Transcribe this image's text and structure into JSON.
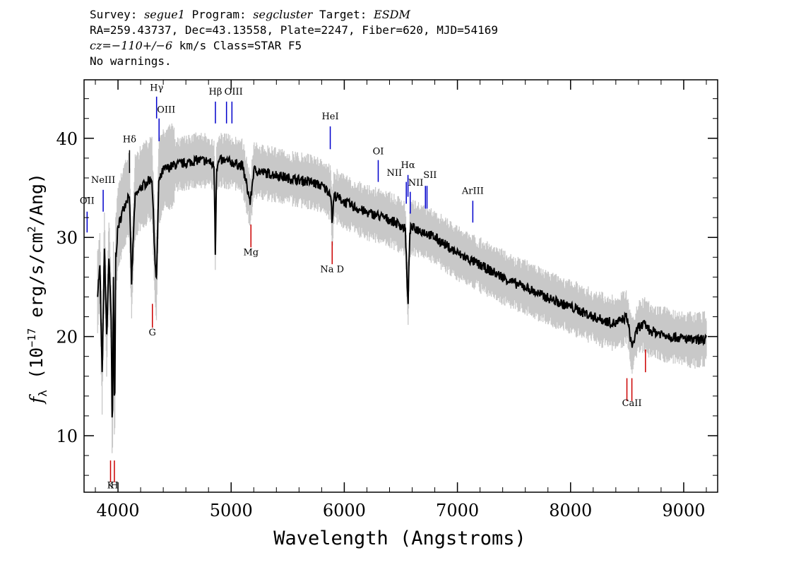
{
  "header": {
    "line1": {
      "survey_label": "Survey: ",
      "survey": "segue1",
      "program_label": " Program: ",
      "program": "segcluster",
      "target_label": " Target: ",
      "target": "ESDM"
    },
    "line2": "RA=259.43737, Dec=43.13558, Plate=2247, Fiber=620, MJD=54169",
    "line3": {
      "cz": "cz=−110+/−6",
      "rest": " km/s Class=STAR F5"
    },
    "line4": "No warnings."
  },
  "chart_data": {
    "type": "line",
    "xlabel": "Wavelength (Angstroms)",
    "ylabel_parts": {
      "f": "f",
      "sub": "λ",
      "open": " (10",
      "exp": "−17",
      "unit": " erg/s/cm",
      "sq": "2",
      "close": "/Ang)"
    },
    "xlim": [
      3700,
      9300
    ],
    "ylim": [
      4.3,
      45.9
    ],
    "xticks": [
      4000,
      5000,
      6000,
      7000,
      8000,
      9000
    ],
    "yticks": [
      10,
      20,
      30,
      40
    ],
    "series": [
      {
        "role": "flux",
        "color": "#000000",
        "x": [
          3820,
          3840,
          3860,
          3880,
          3900,
          3920,
          3940,
          3950,
          3960,
          3970,
          3980,
          4000,
          4050,
          4100,
          4120,
          4150,
          4200,
          4250,
          4300,
          4330,
          4340,
          4360,
          4400,
          4500,
          4600,
          4700,
          4800,
          4850,
          4861,
          4870,
          4900,
          5000,
          5100,
          5170,
          5200,
          5300,
          5400,
          5500,
          5600,
          5700,
          5800,
          5880,
          5893,
          5910,
          6000,
          6100,
          6200,
          6300,
          6400,
          6500,
          6540,
          6563,
          6580,
          6600,
          6700,
          6800,
          6900,
          7000,
          7100,
          7200,
          7300,
          7400,
          7500,
          7600,
          7700,
          7800,
          7900,
          8000,
          8100,
          8200,
          8300,
          8400,
          8498,
          8542,
          8600,
          8662,
          8700,
          8800,
          8900,
          9000,
          9100,
          9200
        ],
        "y": [
          24.5,
          27.0,
          16.0,
          29.0,
          20.0,
          28.0,
          22.0,
          8.8,
          26.0,
          10.8,
          28.0,
          31.0,
          33.0,
          34.5,
          25.5,
          34.0,
          35.0,
          35.5,
          36.0,
          27.0,
          25.5,
          35.5,
          36.8,
          37.3,
          37.5,
          37.8,
          37.7,
          37.2,
          27.8,
          37.0,
          37.8,
          37.6,
          37.2,
          33.5,
          36.8,
          36.5,
          36.3,
          36.0,
          35.8,
          35.6,
          35.2,
          34.5,
          31.5,
          34.3,
          33.6,
          33.0,
          32.5,
          32.2,
          31.8,
          31.2,
          30.8,
          23.0,
          30.8,
          31.0,
          30.6,
          30.0,
          29.2,
          28.4,
          27.8,
          27.2,
          26.6,
          26.0,
          25.4,
          25.0,
          24.4,
          23.9,
          23.4,
          23.0,
          22.5,
          22.0,
          21.6,
          21.3,
          22.0,
          19.0,
          21.0,
          21.2,
          20.6,
          20.3,
          20.0,
          19.8,
          19.6,
          19.8
        ]
      }
    ],
    "lines": [
      {
        "label": "OII",
        "wave": 3727,
        "color": "#0000cc",
        "y_from": 30.5,
        "y_to": 32.6,
        "label_y": 33.4,
        "anchor": "middle"
      },
      {
        "label": "NeIII",
        "wave": 3869,
        "color": "#0000cc",
        "y_from": 32.6,
        "y_to": 34.8,
        "label_y": 35.5,
        "anchor": "middle"
      },
      {
        "label": "K",
        "wave": 3934,
        "color": "#cc0000",
        "y_from": 5.3,
        "y_to": 7.5,
        "label_y": 4.7,
        "anchor": "middle"
      },
      {
        "label": "H",
        "wave": 3968,
        "color": "#cc0000",
        "y_from": 5.3,
        "y_to": 7.5,
        "label_y": 4.7,
        "anchor": "middle"
      },
      {
        "label": "Hδ",
        "wave": 4102,
        "color": "#000000",
        "y_from": 36.5,
        "y_to": 38.8,
        "label_y": 39.6,
        "anchor": "middle"
      },
      {
        "label": "G",
        "wave": 4304,
        "color": "#cc0000",
        "y_from": 20.9,
        "y_to": 23.3,
        "label_y": 20.1,
        "anchor": "middle"
      },
      {
        "label": "Hγ",
        "wave": 4341,
        "color": "#0000cc",
        "y_from": 42.0,
        "y_to": 44.2,
        "label_y": 44.8,
        "anchor": "middle"
      },
      {
        "label": "OIII",
        "wave": 4363,
        "color": "#0000cc",
        "y_from": 39.7,
        "y_to": 42.0,
        "label_y": 42.6,
        "anchor": "start"
      },
      {
        "label": "Hβ",
        "wave": 4861,
        "color": "#0000cc",
        "y_from": 41.5,
        "y_to": 43.7,
        "label_y": 44.4,
        "anchor": "middle"
      },
      {
        "label": "OIII",
        "wave": 4959,
        "color": "#0000cc",
        "y_from": 41.5,
        "y_to": 43.7,
        "label_y": 44.4,
        "anchor": "start"
      },
      {
        "label": "",
        "wave": 5007,
        "color": "#0000cc",
        "y_from": 41.5,
        "y_to": 43.7,
        "label_y": 44.4,
        "anchor": "middle"
      },
      {
        "label": "Mg",
        "wave": 5175,
        "color": "#cc0000",
        "y_from": 29.0,
        "y_to": 31.3,
        "label_y": 28.2,
        "anchor": "middle"
      },
      {
        "label": "HeI",
        "wave": 5876,
        "color": "#0000cc",
        "y_from": 38.9,
        "y_to": 41.2,
        "label_y": 41.9,
        "anchor": "middle"
      },
      {
        "label": "Na D",
        "wave": 5893,
        "color": "#cc0000",
        "y_from": 27.3,
        "y_to": 29.6,
        "label_y": 26.5,
        "anchor": "middle"
      },
      {
        "label": "OI",
        "wave": 6300,
        "color": "#0000cc",
        "y_from": 35.6,
        "y_to": 37.8,
        "label_y": 38.4,
        "anchor": "middle"
      },
      {
        "label": "NII",
        "wave": 6548,
        "color": "#0000cc",
        "y_from": 33.4,
        "y_to": 35.6,
        "label_y": 36.2,
        "anchor": "end"
      },
      {
        "label": "Hα",
        "wave": 6563,
        "color": "#0000cc",
        "y_from": 34.1,
        "y_to": 36.3,
        "label_y": 37.0,
        "anchor": "middle"
      },
      {
        "label": "",
        "wave": 6583,
        "color": "#0000cc",
        "y_from": 32.4,
        "y_to": 34.6,
        "label_y": 35.2,
        "anchor": "middle"
      },
      {
        "label": "NII",
        "wave": 6583,
        "color": "#0000cc",
        "y_from": 33.0,
        "y_to": 33.0,
        "label_y": 35.2,
        "anchor": "start"
      },
      {
        "label": "SII",
        "wave": 6717,
        "color": "#0000cc",
        "y_from": 32.9,
        "y_to": 35.2,
        "label_y": 36.0,
        "anchor": "start"
      },
      {
        "label": "",
        "wave": 6731,
        "color": "#0000cc",
        "y_from": 32.9,
        "y_to": 35.2,
        "label_y": 36.0,
        "anchor": "middle"
      },
      {
        "label": "ArIII",
        "wave": 7136,
        "color": "#0000cc",
        "y_from": 31.5,
        "y_to": 33.7,
        "label_y": 34.4,
        "anchor": "middle"
      },
      {
        "label": "",
        "wave": 8498,
        "color": "#cc0000",
        "y_from": 13.5,
        "y_to": 15.8,
        "label_y": 13.0,
        "anchor": "middle"
      },
      {
        "label": "CaII",
        "wave": 8542,
        "color": "#cc0000",
        "y_from": 13.5,
        "y_to": 15.8,
        "label_y": 13.0,
        "anchor": "middle"
      },
      {
        "label": "",
        "wave": 8662,
        "color": "#cc0000",
        "y_from": 16.4,
        "y_to": 18.7,
        "label_y": 13.0,
        "anchor": "middle"
      }
    ]
  }
}
